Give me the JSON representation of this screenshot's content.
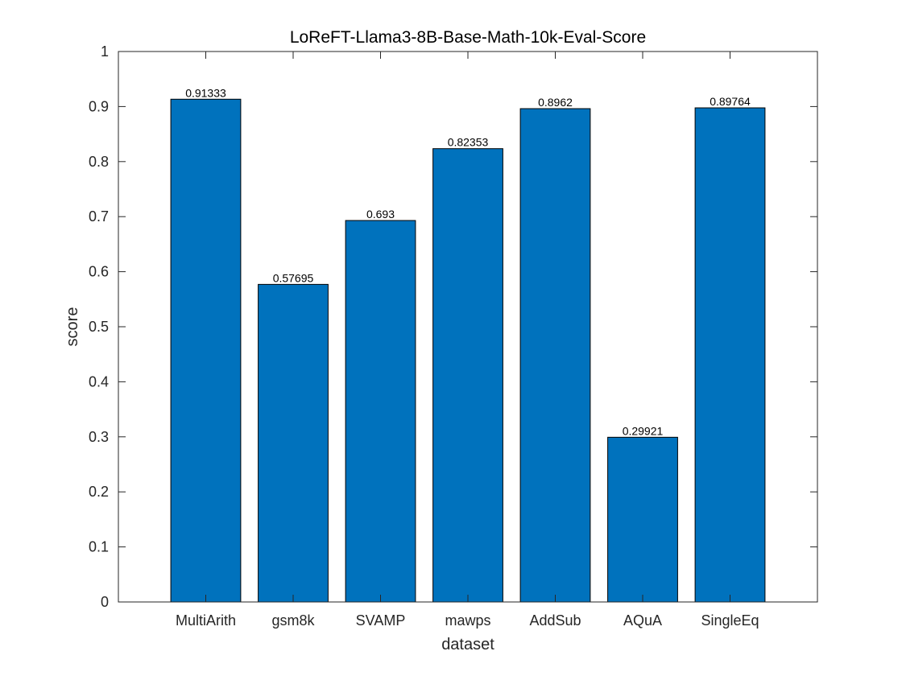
{
  "chart_data": {
    "type": "bar",
    "title": "LoReFT-Llama3-8B-Base-Math-10k-Eval-Score",
    "xlabel": "dataset",
    "ylabel": "score",
    "categories": [
      "MultiArith",
      "gsm8k",
      "SVAMP",
      "mawps",
      "AddSub",
      "AQuA",
      "SingleEq"
    ],
    "values": [
      0.91333,
      0.57695,
      0.693,
      0.82353,
      0.8962,
      0.29921,
      0.89764
    ],
    "value_labels": [
      "0.91333",
      "0.57695",
      "0.693",
      "0.82353",
      "0.8962",
      "0.29921",
      "0.89764"
    ],
    "ylim": [
      0,
      1
    ],
    "yticks": [
      0,
      0.1,
      0.2,
      0.3,
      0.4,
      0.5,
      0.6,
      0.7,
      0.8,
      0.9,
      1
    ],
    "ytick_labels": [
      "0",
      "0.1",
      "0.2",
      "0.3",
      "0.4",
      "0.5",
      "0.6",
      "0.7",
      "0.8",
      "0.9",
      "1"
    ],
    "grid": false,
    "legend": "none",
    "bar_color": "#0072BD",
    "bar_edge_color": "#000000"
  }
}
